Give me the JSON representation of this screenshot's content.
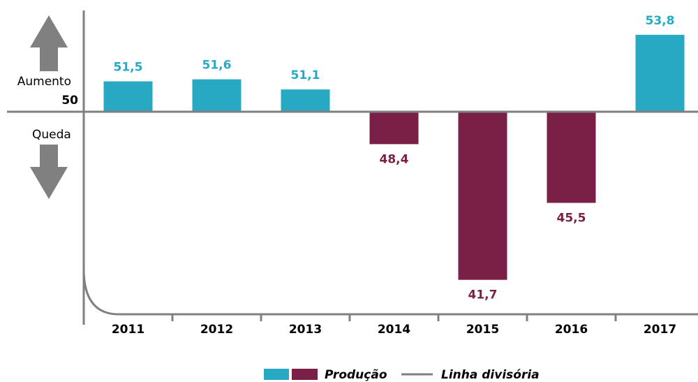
{
  "chart_data": {
    "type": "bar",
    "categories": [
      "2011",
      "2012",
      "2013",
      "2014",
      "2015",
      "2016",
      "2017"
    ],
    "series": [
      {
        "name": "Produção",
        "values": [
          51.5,
          51.6,
          51.1,
          48.4,
          41.7,
          45.5,
          53.8
        ],
        "value_labels": [
          "51,5",
          "51,6",
          "51,1",
          "48,4",
          "41,7",
          "45,5",
          "53,8"
        ],
        "colors": [
          "#27a9c4",
          "#7a1f45"
        ]
      }
    ],
    "divider": {
      "name": "Linha divisória",
      "value": 50,
      "color": "#808080"
    },
    "annotations": [
      "Aumento",
      "Queda"
    ],
    "ylim": [
      40,
      55
    ],
    "yticks": [
      50
    ]
  }
}
